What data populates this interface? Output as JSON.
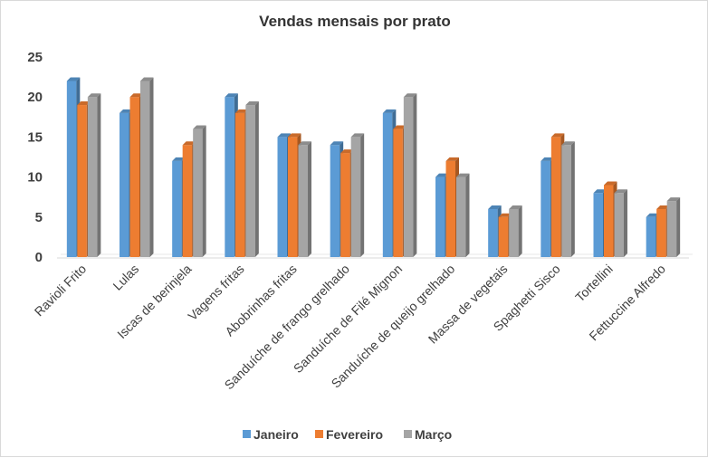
{
  "chart_data": {
    "type": "bar",
    "title": "Vendas mensais por prato",
    "categories": [
      "Ravioli Frito",
      "Lulas",
      "Iscas de berinjela",
      "Vagens fritas",
      "Abobrinhas fritas",
      "Sanduíche de frango grelhado",
      "Sanduíche de Filé Mignon",
      "Sanduíche de queijo grelhado",
      "Massa de vegetais",
      "Spaghetti Sisco",
      "Tortellini",
      "Fettuccine Alfredo"
    ],
    "series": [
      {
        "name": "Janeiro",
        "color": "#5b9bd5",
        "values": [
          22,
          18,
          12,
          20,
          15,
          14,
          18,
          10,
          6,
          12,
          8,
          5
        ]
      },
      {
        "name": "Fevereiro",
        "color": "#ed7d31",
        "values": [
          19,
          20,
          14,
          18,
          15,
          13,
          16,
          12,
          5,
          15,
          9,
          6
        ]
      },
      {
        "name": "Março",
        "color": "#a5a5a5",
        "values": [
          20,
          22,
          16,
          19,
          14,
          15,
          20,
          10,
          6,
          14,
          8,
          7
        ]
      }
    ],
    "ylim": [
      0,
      25
    ],
    "yticks": [
      0,
      5,
      10,
      15,
      20,
      25
    ],
    "grid": false,
    "legend": "bottom"
  }
}
